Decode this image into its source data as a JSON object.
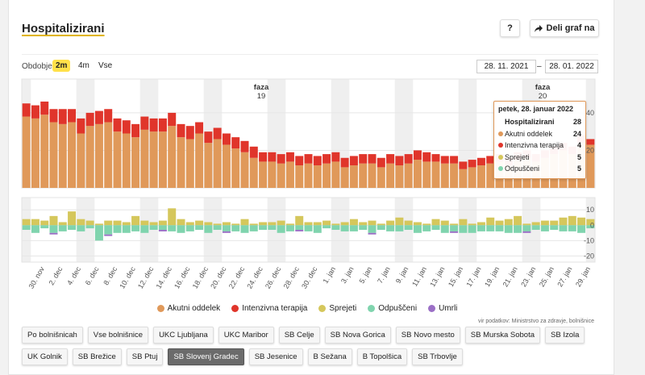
{
  "header": {
    "title": "Hospitalizirani",
    "help": "?",
    "share": "Deli graf na"
  },
  "period": {
    "label": "Obdobje",
    "options": [
      "2m",
      "4m",
      "Vse"
    ],
    "selected": 0,
    "from": "28. 11. 2021",
    "separator": "–",
    "to": "28. 01. 2022"
  },
  "chart_data": [
    {
      "type": "bar",
      "stacked": true,
      "series": [
        {
          "name": "Akutni oddelek",
          "color": "#e0995a",
          "values": [
            38,
            37,
            39,
            35,
            34,
            35,
            29,
            33,
            34,
            35,
            30,
            29,
            27,
            31,
            30,
            30,
            33,
            27,
            26,
            29,
            24,
            26,
            23,
            21,
            19,
            16,
            14,
            14,
            13,
            14,
            12,
            13,
            12,
            13,
            14,
            11,
            12,
            13,
            13,
            11,
            13,
            12,
            13,
            15,
            14,
            14,
            13,
            13,
            10,
            11,
            12,
            13,
            14,
            12,
            15,
            16,
            14,
            16,
            18,
            20,
            18,
            24,
            23
          ]
        },
        {
          "name": "Intenzivna terapija",
          "color": "#e0352b",
          "values": [
            7,
            7,
            7,
            7,
            8,
            7,
            8,
            7,
            7,
            7,
            7,
            7,
            7,
            7,
            7,
            7,
            7,
            7,
            7,
            6,
            6,
            6,
            6,
            6,
            6,
            6,
            5,
            5,
            5,
            5,
            5,
            5,
            5,
            5,
            5,
            5,
            5,
            5,
            5,
            5,
            5,
            5,
            5,
            5,
            5,
            4,
            4,
            4,
            4,
            4,
            4,
            4,
            4,
            4,
            4,
            4,
            4,
            4,
            4,
            4,
            4,
            4,
            3
          ]
        }
      ],
      "ylim": [
        0,
        58
      ],
      "yticks": [
        20,
        40
      ],
      "grid": true,
      "annotations": [
        {
          "text": "faza",
          "label": "19"
        },
        {
          "text": "faza",
          "label": "20"
        }
      ]
    },
    {
      "type": "bar",
      "stacked": true,
      "categories": [
        null,
        null,
        "30. nov",
        null,
        "2. dec",
        null,
        "4. dec",
        null,
        "6. dec",
        null,
        "8. dec",
        null,
        "10. dec",
        null,
        "12. dec",
        null,
        "14. dec",
        null,
        "16. dec",
        null,
        "18. dec",
        null,
        "20. dec",
        null,
        "22. dec",
        null,
        "24. dec",
        null,
        "26. dec",
        null,
        "28. dec",
        null,
        "30. dec",
        null,
        "1. jan",
        null,
        "3. jan",
        null,
        "5. jan",
        null,
        "7. jan",
        null,
        "9. jan",
        null,
        "11. jan",
        null,
        "13. jan",
        null,
        "15. jan",
        null,
        "17. jan",
        null,
        "19. jan",
        null,
        "21. jan",
        null,
        "23. jan",
        null,
        "25. jan",
        null,
        "27. jan",
        null,
        "29. jan"
      ],
      "series": [
        {
          "name": "Sprejeti",
          "color": "#d5c75c",
          "values": [
            4,
            4,
            3,
            6,
            2,
            9,
            4,
            3,
            1,
            3,
            3,
            2,
            6,
            3,
            2,
            3,
            11,
            4,
            2,
            3,
            2,
            1,
            2,
            1,
            4,
            1,
            2,
            2,
            3,
            1,
            6,
            2,
            2,
            3,
            1,
            2,
            4,
            2,
            3,
            1,
            3,
            5,
            3,
            2,
            1,
            4,
            3,
            1,
            4,
            1,
            2,
            5,
            3,
            4,
            6,
            1,
            2,
            3,
            3,
            5,
            6,
            5,
            4
          ]
        },
        {
          "name": "Odpuščeni",
          "color": "#80d4ae",
          "values": [
            -3,
            -5,
            -2,
            -5,
            -4,
            -3,
            -4,
            -2,
            -10,
            -6,
            -5,
            -5,
            -4,
            -5,
            -3,
            -3,
            -4,
            -5,
            -4,
            -3,
            -5,
            -3,
            -4,
            -4,
            -5,
            -4,
            -3,
            -3,
            -5,
            -4,
            -3,
            -4,
            -5,
            -2,
            -3,
            -4,
            -4,
            -3,
            -5,
            -3,
            -4,
            -4,
            -3,
            -5,
            -4,
            -3,
            -5,
            -4,
            -5,
            -5,
            -4,
            -4,
            -4,
            -5,
            -5,
            -4,
            -3,
            -4,
            -3,
            -4,
            -4,
            -5,
            -2
          ]
        },
        {
          "name": "Umrli",
          "color": "#9b6fc6",
          "values": [
            0,
            0,
            0,
            -1,
            0,
            0,
            0,
            0,
            0,
            -1,
            0,
            0,
            0,
            0,
            0,
            -1,
            0,
            0,
            0,
            0,
            0,
            0,
            -1,
            0,
            0,
            0,
            0,
            0,
            0,
            0,
            -1,
            0,
            0,
            0,
            0,
            0,
            0,
            0,
            -1,
            0,
            0,
            0,
            0,
            0,
            0,
            0,
            0,
            -1,
            0,
            0,
            0,
            0,
            0,
            0,
            0,
            -1,
            0,
            0,
            0,
            0,
            0,
            0,
            0
          ]
        }
      ],
      "ylim": [
        -24,
        18
      ],
      "yticks": [
        -20,
        -10,
        0,
        10
      ],
      "grid": true
    }
  ],
  "tooltip": {
    "date": "petek, 28. januar 2022",
    "rows": [
      {
        "label": "Hospitalizirani",
        "value": 28
      },
      {
        "label": "Akutni oddelek",
        "value": 24,
        "color": "#e0995a"
      },
      {
        "label": "Intenzivna terapija",
        "value": 4,
        "color": "#e0352b"
      },
      {
        "label": "Sprejeti",
        "value": 5,
        "color": "#d5c75c"
      },
      {
        "label": "Odpuščeni",
        "value": 5,
        "color": "#80d4ae"
      }
    ]
  },
  "source": "vir podatkov: Ministrstvo za zdravje, bolnišnice",
  "filters": [
    "Po bolnišnicah",
    "Vse bolnišnice",
    "UKC Ljubljana",
    "UKC Maribor",
    "SB Celje",
    "SB Nova Gorica",
    "SB Novo mesto",
    "SB Murska Sobota",
    "SB Izola",
    "UK Golnik",
    "SB Brežice",
    "SB Ptuj",
    "SB Slovenj Gradec",
    "SB Jesenice",
    "B Sežana",
    "B Topolšica",
    "SB Trbovlje"
  ],
  "selected_filter": 12
}
